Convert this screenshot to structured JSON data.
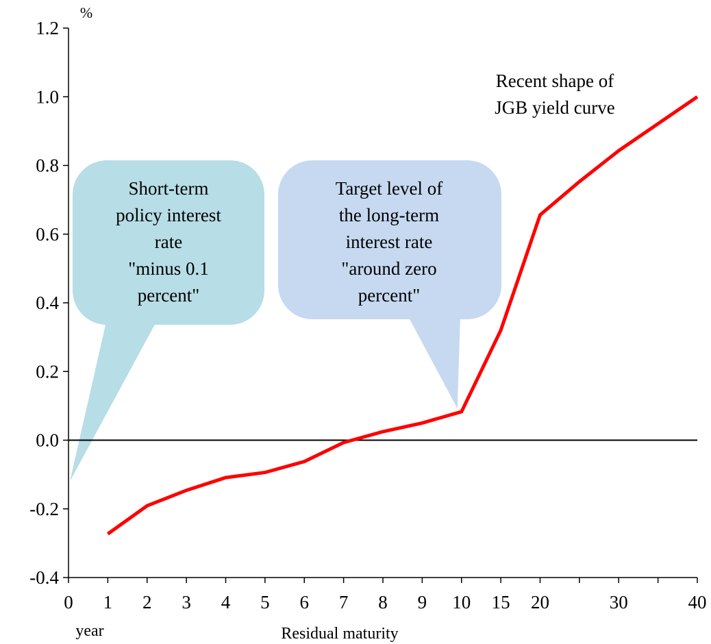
{
  "chart_data": {
    "type": "line",
    "title": "",
    "y_unit": "%",
    "xlabel": "Residual maturity",
    "x_unit_label": "year",
    "ylim": [
      -0.4,
      1.2
    ],
    "yticks": [
      "-0.4",
      "-0.2",
      "0.0",
      "0.2",
      "0.4",
      "0.6",
      "0.8",
      "1.0",
      "1.2"
    ],
    "categories": [
      "0",
      "1",
      "2",
      "3",
      "4",
      "5",
      "6",
      "7",
      "8",
      "9",
      "10",
      "15",
      "20",
      "30",
      "40"
    ],
    "minor_category_ticks": [
      "25",
      "35"
    ],
    "grid": false,
    "zero_line": true,
    "series": [
      {
        "name": "",
        "color": "#ff0000",
        "points": [
          {
            "x": 1,
            "y": -0.273
          },
          {
            "x": 2,
            "y": -0.191
          },
          {
            "x": 3,
            "y": -0.146
          },
          {
            "x": 4,
            "y": -0.109
          },
          {
            "x": 5,
            "y": -0.094
          },
          {
            "x": 6,
            "y": -0.062
          },
          {
            "x": 7,
            "y": -0.007
          },
          {
            "x": 8,
            "y": 0.025
          },
          {
            "x": 9,
            "y": 0.05
          },
          {
            "x": 10,
            "y": 0.083
          },
          {
            "x": 15,
            "y": 0.32
          },
          {
            "x": 20,
            "y": 0.656
          },
          {
            "x": 25,
            "y": 0.753
          },
          {
            "x": 30,
            "y": 0.843
          },
          {
            "x": 40,
            "y": 1.0
          }
        ]
      }
    ],
    "annotations": {
      "curve_label": [
        "Recent shape of",
        "JGB yield curve"
      ],
      "short_term_callout": {
        "lines": [
          "Short-term",
          "policy interest",
          "rate",
          "\"minus 0.1",
          "percent\""
        ],
        "color": "#b7dde6",
        "points_to": {
          "x": 0,
          "y": -0.1
        }
      },
      "long_term_callout": {
        "lines": [
          "Target level of",
          "the long-term",
          "interest rate",
          "\"around zero",
          "percent\""
        ],
        "color": "#c6d9f1",
        "points_to": {
          "x": 10,
          "y": 0.1
        }
      }
    }
  }
}
